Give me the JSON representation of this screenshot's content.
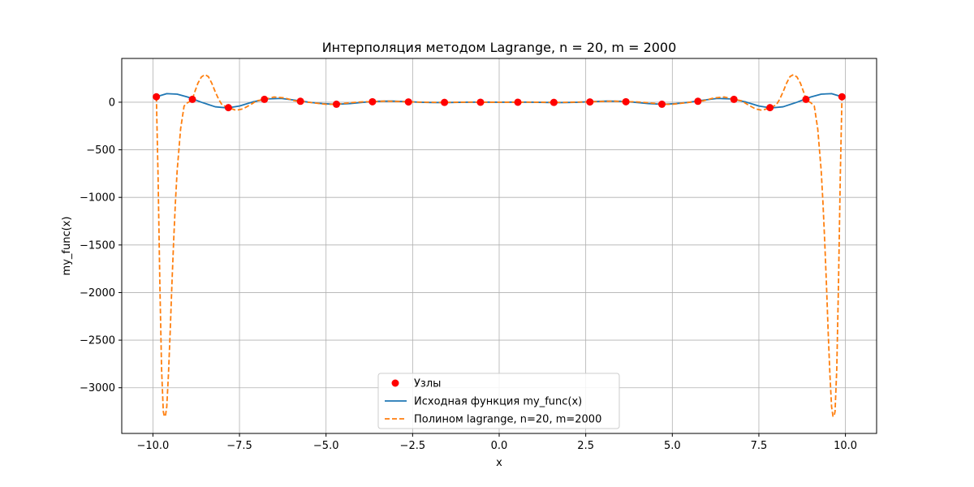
{
  "chart_data": {
    "type": "line",
    "title": "Интерполяция методом Lagrange, n = 20, m = 2000",
    "xlabel": "x",
    "ylabel": "my_func(x)",
    "xlim": [
      -10.9,
      10.9
    ],
    "ylim": [
      -3480,
      460
    ],
    "xticks": [
      -10.0,
      -7.5,
      -5.0,
      -2.5,
      0.0,
      2.5,
      5.0,
      7.5,
      10.0
    ],
    "xtick_labels": [
      "−10.0",
      "−7.5",
      "−5.0",
      "−2.5",
      "0.0",
      "2.5",
      "5.0",
      "7.5",
      "10.0"
    ],
    "yticks": [
      0,
      -500,
      -1000,
      -1500,
      -2000,
      -2500,
      -3000
    ],
    "ytick_labels": [
      "0",
      "−500",
      "−1000",
      "−1500",
      "−2000",
      "−2500",
      "−3000"
    ],
    "grid": true,
    "legend_position": "lower-center",
    "series": [
      {
        "name": "Узлы",
        "kind": "scatter",
        "color": "#ff0000",
        "x": [
          -9.9,
          -8.86,
          -7.82,
          -6.78,
          -5.74,
          -4.7,
          -3.66,
          -2.62,
          -1.58,
          -0.54,
          0.54,
          1.58,
          2.62,
          3.66,
          4.7,
          5.74,
          6.78,
          7.82,
          8.86,
          9.9
        ],
        "y": [
          57,
          30,
          -57,
          30,
          10,
          -21,
          5,
          3,
          -2,
          0,
          0,
          -2,
          3,
          5,
          -21,
          10,
          30,
          -57,
          30,
          57
        ]
      },
      {
        "name": "Исходная функция my_func(x)",
        "kind": "line",
        "style": "solid",
        "color": "#1f77b4",
        "x": [
          -9.9,
          -9.6,
          -9.3,
          -9.0,
          -8.6,
          -8.2,
          -7.85,
          -7.5,
          -7.1,
          -6.7,
          -6.3,
          -5.9,
          -5.5,
          -5.1,
          -4.7,
          -4.3,
          -3.9,
          -3.5,
          -3.1,
          -2.7,
          -2.3,
          -1.9,
          -1.5,
          -1.0,
          -0.5,
          0.0,
          0.5,
          1.0,
          1.5,
          1.9,
          2.3,
          2.7,
          3.1,
          3.5,
          3.9,
          4.3,
          4.7,
          5.1,
          5.5,
          5.9,
          6.3,
          6.7,
          7.1,
          7.5,
          7.85,
          8.2,
          8.6,
          9.0,
          9.3,
          9.6,
          9.9
        ],
        "y": [
          57,
          90,
          85,
          55,
          0,
          -48,
          -60,
          -40,
          5,
          35,
          40,
          22,
          0,
          -15,
          -22,
          -14,
          0,
          10,
          12,
          7,
          0,
          -3,
          -3,
          0,
          1,
          0,
          1,
          0,
          -3,
          -3,
          0,
          7,
          12,
          10,
          0,
          -14,
          -22,
          -15,
          0,
          22,
          40,
          35,
          5,
          -40,
          -60,
          -48,
          0,
          55,
          85,
          90,
          57
        ]
      },
      {
        "name": "Полином lagrange, n=20, m=2000",
        "kind": "line",
        "style": "dashed",
        "color": "#ff7f0e",
        "x": [
          -9.9,
          -9.85,
          -9.8,
          -9.75,
          -9.7,
          -9.67,
          -9.64,
          -9.6,
          -9.55,
          -9.5,
          -9.45,
          -9.4,
          -9.35,
          -9.3,
          -9.2,
          -9.1,
          -9.0,
          -8.95,
          -8.9,
          -8.86,
          -8.8,
          -8.7,
          -8.6,
          -8.5,
          -8.4,
          -8.3,
          -8.2,
          -8.1,
          -8.0,
          -7.82,
          -7.6,
          -7.4,
          -7.2,
          -7.0,
          -6.78,
          -6.5,
          -6.2,
          -5.9,
          -5.74,
          -5.4,
          -5.0,
          -4.7,
          -4.3,
          -3.9,
          -3.66,
          -3.3,
          -2.9,
          -2.62,
          -2.2,
          -1.8,
          -1.58,
          -1.2,
          -0.8,
          -0.54,
          0.0,
          0.54,
          0.8,
          1.2,
          1.58,
          1.8,
          2.2,
          2.62,
          2.9,
          3.3,
          3.66,
          3.9,
          4.3,
          4.7,
          5.0,
          5.4,
          5.74,
          5.9,
          6.2,
          6.5,
          6.78,
          7.0,
          7.2,
          7.4,
          7.6,
          7.82,
          8.0,
          8.1,
          8.2,
          8.3,
          8.4,
          8.5,
          8.6,
          8.7,
          8.8,
          8.86,
          8.9,
          8.95,
          9.0,
          9.1,
          9.2,
          9.3,
          9.35,
          9.4,
          9.45,
          9.5,
          9.55,
          9.6,
          9.64,
          9.67,
          9.7,
          9.75,
          9.8,
          9.85,
          9.9
        ],
        "y": [
          57,
          -800,
          -1900,
          -2800,
          -3250,
          -3300,
          -3300,
          -3200,
          -2850,
          -2400,
          -1900,
          -1450,
          -1050,
          -720,
          -280,
          -40,
          -5,
          5,
          15,
          30,
          100,
          200,
          265,
          290,
          270,
          200,
          110,
          30,
          -30,
          -57,
          -85,
          -70,
          -30,
          15,
          30,
          55,
          45,
          15,
          10,
          -5,
          -22,
          -21,
          -5,
          5,
          5,
          12,
          8,
          3,
          1,
          -2,
          -2,
          0,
          1,
          0,
          0,
          0,
          1,
          0,
          -2,
          -2,
          1,
          3,
          8,
          12,
          5,
          5,
          -5,
          -21,
          -22,
          -5,
          10,
          15,
          45,
          55,
          30,
          15,
          -30,
          -70,
          -85,
          -57,
          -30,
          30,
          110,
          200,
          270,
          290,
          265,
          200,
          100,
          30,
          15,
          5,
          -5,
          -40,
          -280,
          -720,
          -1050,
          -1450,
          -1900,
          -2400,
          -2850,
          -3200,
          -3300,
          -3300,
          -3250,
          -2800,
          -1900,
          -800,
          57
        ]
      }
    ]
  }
}
